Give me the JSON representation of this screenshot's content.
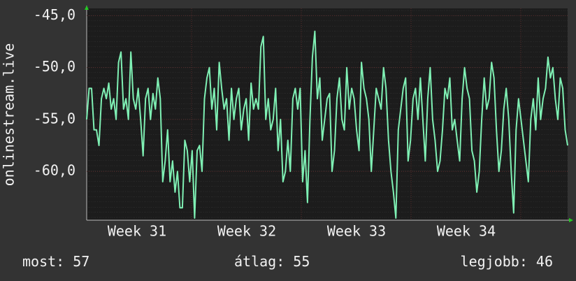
{
  "chart_data": {
    "type": "line",
    "y_label": "onlinestream.live",
    "ylim": [
      -64.7,
      -44.3
    ],
    "yticks": [
      {
        "value": -60,
        "label": "-60,0"
      },
      {
        "value": -55,
        "label": "-55,0"
      },
      {
        "value": -50,
        "label": "-50,0"
      },
      {
        "value": -45,
        "label": "-45,0"
      }
    ],
    "xticks": [
      "Week 31",
      "Week 32",
      "Week 33",
      "Week 34"
    ],
    "grid": true,
    "series": [
      {
        "color": "#7ff0b4",
        "values": [
          -55,
          -52,
          -52,
          -56,
          -56,
          -57.5,
          -53,
          -52,
          -53,
          -51.5,
          -54,
          -53,
          -55,
          -49.5,
          -48.5,
          -54,
          -53,
          -55,
          -48.5,
          -53,
          -54,
          -52,
          -55,
          -58.5,
          -53,
          -52,
          -55,
          -52.5,
          -54,
          -51,
          -53,
          -61,
          -59,
          -56,
          -61,
          -59,
          -62,
          -60,
          -63.5,
          -63.5,
          -57,
          -58,
          -61,
          -58,
          -64.5,
          -58,
          -57.5,
          -60,
          -53,
          -51,
          -50,
          -54,
          -52,
          -56,
          -49.5,
          -52,
          -54,
          -53,
          -57,
          -52,
          -55,
          -53,
          -52,
          -56,
          -54,
          -53,
          -57,
          -51.5,
          -54,
          -53,
          -54,
          -48,
          -47,
          -55,
          -53,
          -56,
          -55,
          -52,
          -58,
          -55,
          -61,
          -60,
          -57,
          -60,
          -53,
          -52,
          -54,
          -52,
          -61,
          -58,
          -63,
          -55,
          -49,
          -46.5,
          -53,
          -51,
          -57,
          -55,
          -53,
          -52.5,
          -60,
          -58,
          -53,
          -51,
          -55,
          -56,
          -50,
          -54,
          -52,
          -53,
          -56,
          -58,
          -49.5,
          -52,
          -53,
          -55,
          -60,
          -56,
          -52,
          -53,
          -54,
          -50,
          -52,
          -57,
          -60,
          -62,
          -64.5,
          -56,
          -54,
          -52,
          -51,
          -59,
          -57,
          -53,
          -52,
          -55,
          -51,
          -55,
          -59,
          -53,
          -50,
          -55,
          -57,
          -60,
          -59,
          -56,
          -52,
          -53,
          -51,
          -56,
          -55,
          -57,
          -59,
          -53,
          -50,
          -52,
          -53,
          -58,
          -59,
          -62,
          -60,
          -55,
          -51,
          -54,
          -53,
          -49.5,
          -51,
          -56,
          -60,
          -58,
          -54,
          -52,
          -55,
          -60,
          -64,
          -56,
          -53,
          -55,
          -57,
          -59,
          -61,
          -55,
          -53,
          -56,
          -51,
          -55,
          -53,
          -52,
          -49,
          -51,
          -50,
          -53,
          -55,
          -51,
          -52,
          -56,
          -57.5
        ]
      }
    ]
  },
  "footer": [
    {
      "label": "most:",
      "value": 57
    },
    {
      "label": "átlag:",
      "value": 55
    },
    {
      "label": "legjobb:",
      "value": 46
    }
  ]
}
